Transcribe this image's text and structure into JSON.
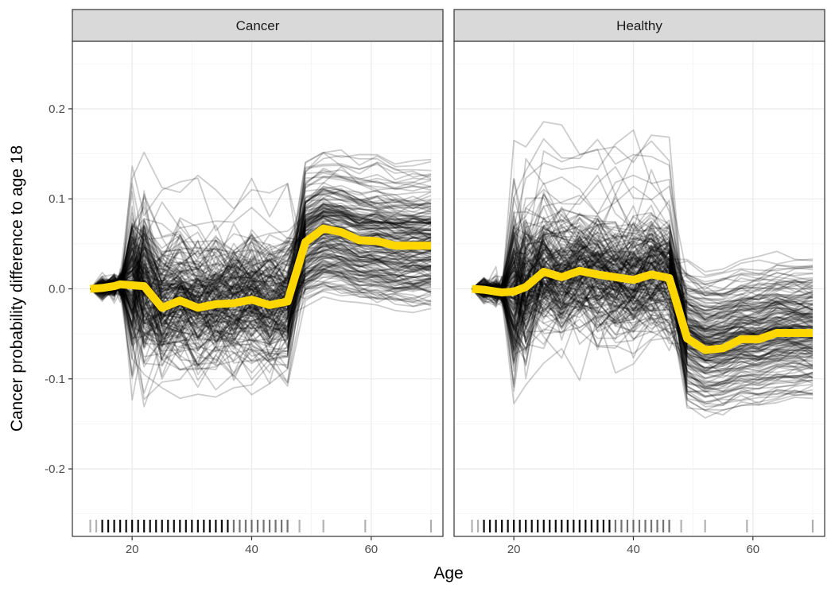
{
  "chart_data": {
    "type": "line",
    "xlabel": "Age",
    "ylabel": "Cancer probability difference to age 18",
    "xlim": [
      10,
      72
    ],
    "ylim": [
      -0.275,
      0.275
    ],
    "x_ticks": [
      20,
      40,
      60
    ],
    "x_tick_labels": [
      "20",
      "40",
      "60"
    ],
    "y_ticks": [
      -0.2,
      -0.1,
      0.0,
      0.1,
      0.2
    ],
    "y_tick_labels": [
      "-0.2",
      "-0.1",
      "0.0",
      "0.1",
      "0.2"
    ],
    "grid": true,
    "colors": {
      "ice": "#000000",
      "pdp": "#FFD700",
      "strip": "#d9d9d9"
    },
    "ages": [
      13,
      15,
      17,
      18,
      20,
      22,
      25,
      28,
      31,
      34,
      37,
      40,
      43,
      46,
      49,
      52,
      55,
      58,
      61,
      64,
      67,
      70
    ],
    "rug_ages": [
      13,
      14,
      15,
      16,
      17,
      18,
      19,
      20,
      21,
      22,
      23,
      24,
      25,
      26,
      27,
      28,
      29,
      30,
      31,
      32,
      33,
      34,
      35,
      36,
      37,
      38,
      39,
      40,
      41,
      42,
      43,
      44,
      45,
      46,
      48,
      52,
      59,
      70
    ],
    "panels": [
      {
        "strip": "Cancer",
        "pdp_y": [
          0.0,
          0.001,
          0.003,
          0.005,
          0.004,
          0.003,
          -0.021,
          -0.013,
          -0.021,
          -0.017,
          -0.016,
          -0.012,
          -0.018,
          -0.014,
          0.052,
          0.067,
          0.063,
          0.054,
          0.053,
          0.048,
          0.048,
          0.048
        ],
        "ice_seed": 7,
        "sign": 1
      },
      {
        "strip": "Healthy",
        "pdp_y": [
          0.0,
          -0.001,
          -0.003,
          -0.004,
          -0.003,
          0.002,
          0.019,
          0.013,
          0.02,
          0.016,
          0.013,
          0.01,
          0.016,
          0.012,
          -0.055,
          -0.068,
          -0.066,
          -0.056,
          -0.056,
          -0.049,
          -0.049,
          -0.049
        ],
        "ice_seed": 11,
        "sign": -1
      }
    ]
  }
}
